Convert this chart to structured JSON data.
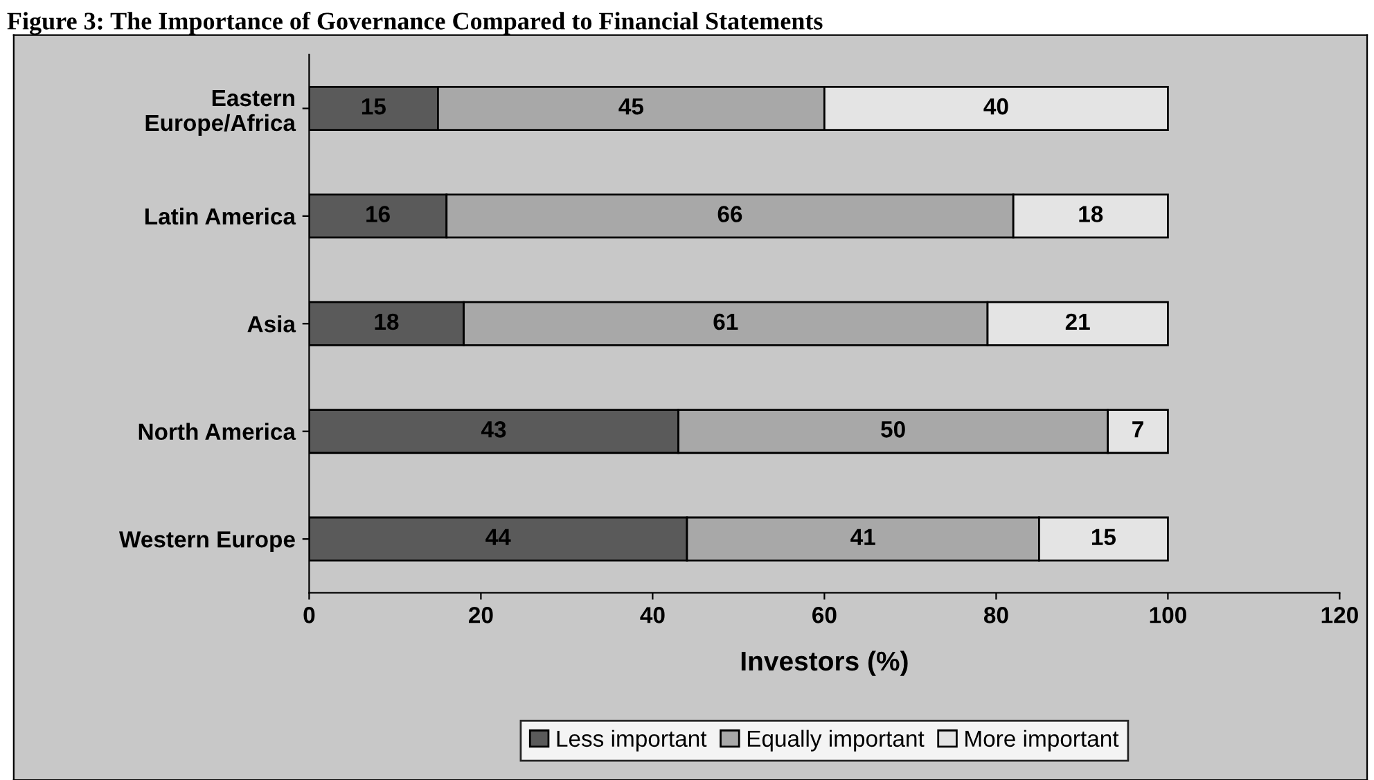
{
  "chart_data": {
    "type": "bar",
    "orientation": "horizontal",
    "stacked": true,
    "title": "Figure 3: The Importance of Governance Compared to Financial Statements",
    "xlabel": "Investors (%)",
    "categories": [
      "Eastern\nEurope/Africa",
      "Latin America",
      "Asia",
      "North America",
      "Western Europe"
    ],
    "series": [
      {
        "name": "Less important",
        "color": "#5a5a5a",
        "values": [
          15,
          16,
          18,
          43,
          44
        ]
      },
      {
        "name": "Equally important",
        "color": "#a8a8a8",
        "values": [
          45,
          66,
          61,
          50,
          41
        ]
      },
      {
        "name": "More important",
        "color": "#e4e4e4",
        "values": [
          40,
          18,
          21,
          7,
          15
        ]
      }
    ],
    "xlim": [
      0,
      120
    ],
    "xticks": [
      0,
      20,
      40,
      60,
      80,
      100,
      120
    ],
    "data_labels": true,
    "grid": false,
    "legend": "bottom"
  }
}
